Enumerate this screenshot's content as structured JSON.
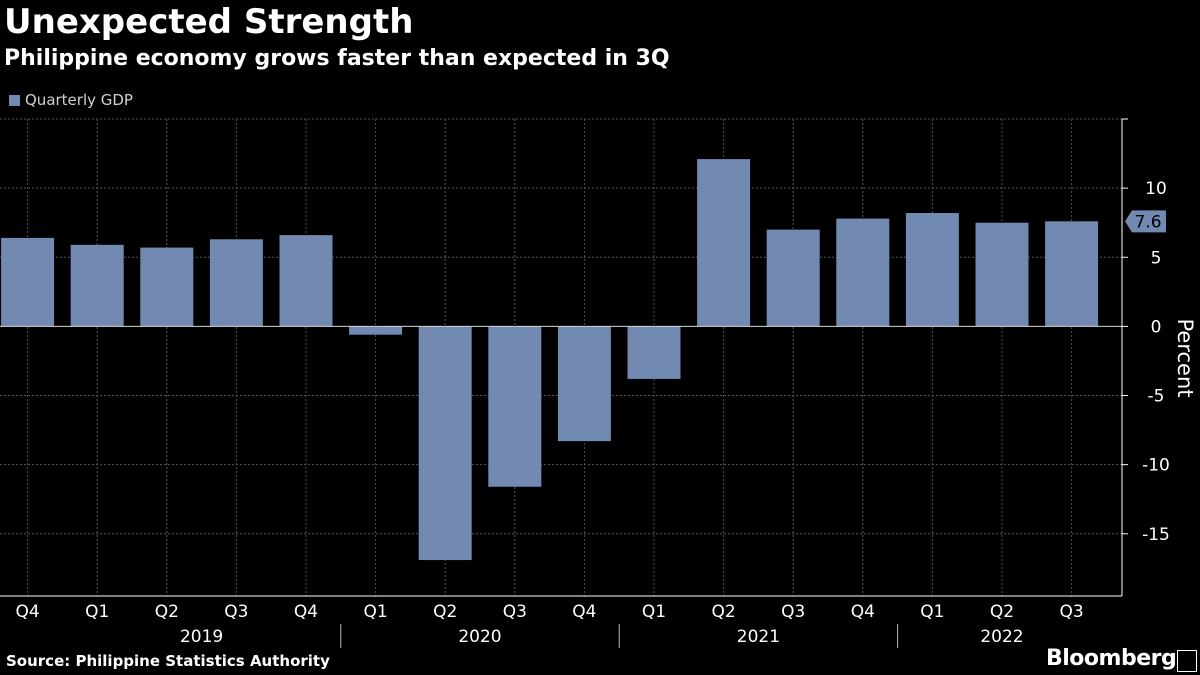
{
  "title": "Unexpected Strength",
  "subtitle": "Philippine economy grows faster than expected in 3Q",
  "source": "Source: Philippine Statistics Authority",
  "brand": "Bloomberg",
  "colors": {
    "bar": "#7289b2",
    "background": "#000000",
    "grid": "#555555",
    "axis": "#ffffff"
  },
  "chart_data": {
    "type": "bar",
    "title": "Unexpected Strength",
    "subtitle": "Philippine economy grows faster than expected in 3Q",
    "ylabel": "Percent",
    "xlabel": "",
    "ylim": [
      -19.5,
      15
    ],
    "yticks": [
      -15,
      -10,
      -5,
      0,
      5,
      10
    ],
    "grid": true,
    "legend_position": "top-left",
    "categories": [
      "Q4",
      "Q1",
      "Q2",
      "Q3",
      "Q4",
      "Q1",
      "Q2",
      "Q3",
      "Q4",
      "Q1",
      "Q2",
      "Q3",
      "Q4",
      "Q1",
      "Q2",
      "Q3"
    ],
    "year_groups": [
      {
        "label": "2019",
        "start": 1,
        "end": 4
      },
      {
        "label": "2020",
        "start": 5,
        "end": 8
      },
      {
        "label": "2021",
        "start": 9,
        "end": 12
      },
      {
        "label": "2022",
        "start": 13,
        "end": 15
      }
    ],
    "series": [
      {
        "name": "Quarterly GDP",
        "values": [
          6.4,
          5.9,
          5.7,
          6.3,
          6.6,
          -0.6,
          -16.9,
          -11.6,
          -8.3,
          -3.8,
          12.1,
          7.0,
          7.8,
          8.2,
          7.5,
          7.6
        ]
      }
    ],
    "last_value_label": "7.6"
  }
}
